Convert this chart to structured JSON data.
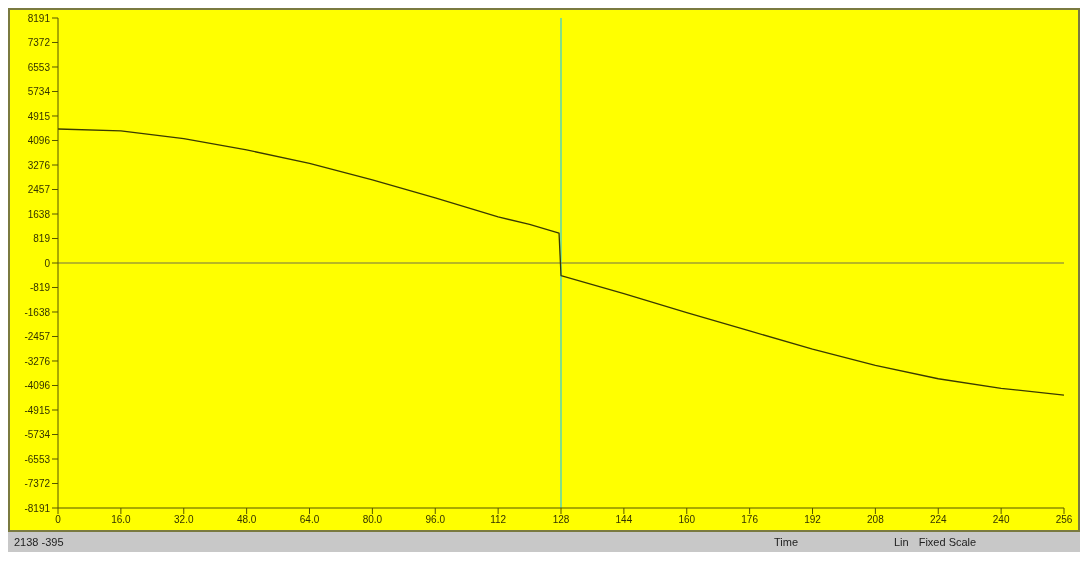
{
  "chart_data": {
    "type": "line",
    "xlabel": "Time",
    "x": [
      0,
      16,
      32,
      48,
      64,
      80,
      96,
      112,
      120,
      126,
      127.5,
      128,
      136,
      144,
      160,
      176,
      192,
      208,
      224,
      240,
      256
    ],
    "series": [
      {
        "color": "#3a3a00",
        "values": [
          4480,
          4420,
          4160,
          3780,
          3330,
          2780,
          2180,
          1540,
          1290,
          1060,
          1000,
          -420,
          -720,
          -1020,
          -1660,
          -2270,
          -2880,
          -3420,
          -3870,
          -4190,
          -4420
        ]
      }
    ],
    "xlim": [
      0,
      256
    ],
    "xticks": [
      0,
      {
        "value": 16,
        "label": "16.0"
      },
      {
        "value": 32,
        "label": "32.0"
      },
      {
        "value": 48,
        "label": "48.0"
      },
      {
        "value": 64,
        "label": "64.0"
      },
      {
        "value": 80,
        "label": "80.0"
      },
      {
        "value": 96,
        "label": "96.0"
      },
      112,
      128,
      144,
      160,
      176,
      192,
      208,
      224,
      240,
      256
    ],
    "ylim": [
      -8191,
      8191
    ],
    "yticks": [
      -8191,
      -7372,
      -6553,
      -5734,
      -4915,
      -4096,
      -3276,
      -2457,
      -1638,
      -819,
      0,
      819,
      1638,
      2457,
      3276,
      4096,
      4915,
      5734,
      6553,
      7372,
      8191
    ],
    "ref_lines": [
      {
        "axis": "x",
        "value": 128,
        "color": "#40d0d0"
      },
      {
        "axis": "y",
        "value": 0,
        "color": "#a0a030"
      }
    ],
    "grid": false,
    "legend": false,
    "marker": "none",
    "line_style": "solid",
    "annotations": [
      "2138 -395",
      "Lin",
      "Fixed Scale"
    ]
  }
}
